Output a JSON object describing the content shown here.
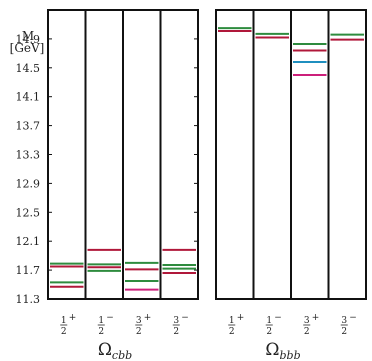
{
  "chart_data": {
    "type": "level-spectrum",
    "ylabel": "M",
    "yunit": "[GeV]",
    "ylim": [
      11.3,
      15.3
    ],
    "yticks": [
      "11.3",
      "11.7",
      "12.1",
      "12.5",
      "12.9",
      "13.3",
      "13.7",
      "14.1",
      "14.5",
      "14.9"
    ],
    "panels": [
      {
        "label_base": "Ω",
        "label_sub": "cbb",
        "columns": [
          {
            "jp_num": "1",
            "jp_den": "2",
            "jp_sign": "+",
            "levels": [
              {
                "value": 11.79,
                "color": "#2e8b3e"
              },
              {
                "value": 11.75,
                "color": "#b0183a"
              },
              {
                "value": 11.53,
                "color": "#2e8b3e"
              },
              {
                "value": 11.47,
                "color": "#b0183a"
              }
            ]
          },
          {
            "jp_num": "1",
            "jp_den": "2",
            "jp_sign": "−",
            "levels": [
              {
                "value": 11.98,
                "color": "#b0183a"
              },
              {
                "value": 11.78,
                "color": "#2e8b3e"
              },
              {
                "value": 11.74,
                "color": "#b0183a"
              },
              {
                "value": 11.69,
                "color": "#2e8b3e"
              }
            ]
          },
          {
            "jp_num": "3",
            "jp_den": "2",
            "jp_sign": "+",
            "levels": [
              {
                "value": 11.8,
                "color": "#2e8b3e"
              },
              {
                "value": 11.71,
                "color": "#b0183a"
              },
              {
                "value": 11.55,
                "color": "#2e8b3e"
              },
              {
                "value": 11.43,
                "color": "#cc1f7a"
              }
            ]
          },
          {
            "jp_num": "3",
            "jp_den": "2",
            "jp_sign": "−",
            "levels": [
              {
                "value": 11.98,
                "color": "#b0183a"
              },
              {
                "value": 11.77,
                "color": "#2e8b3e"
              },
              {
                "value": 11.72,
                "color": "#2e8b3e"
              },
              {
                "value": 11.66,
                "color": "#b0183a"
              }
            ]
          }
        ]
      },
      {
        "label_base": "Ω",
        "label_sub": "bbb",
        "columns": [
          {
            "jp_num": "1",
            "jp_den": "2",
            "jp_sign": "+",
            "levels": [
              {
                "value": 15.05,
                "color": "#2e8b3e"
              },
              {
                "value": 15.01,
                "color": "#b0183a"
              }
            ]
          },
          {
            "jp_num": "1",
            "jp_den": "2",
            "jp_sign": "−",
            "levels": [
              {
                "value": 14.97,
                "color": "#2e8b3e"
              },
              {
                "value": 14.92,
                "color": "#b0183a"
              }
            ]
          },
          {
            "jp_num": "3",
            "jp_den": "2",
            "jp_sign": "+",
            "levels": [
              {
                "value": 14.83,
                "color": "#2e8b3e"
              },
              {
                "value": 14.74,
                "color": "#b0183a"
              },
              {
                "value": 14.58,
                "color": "#1f8fbf"
              },
              {
                "value": 14.4,
                "color": "#cc1f7a"
              }
            ]
          },
          {
            "jp_num": "3",
            "jp_den": "2",
            "jp_sign": "−",
            "levels": [
              {
                "value": 14.96,
                "color": "#2e8b3e"
              },
              {
                "value": 14.89,
                "color": "#b0183a"
              }
            ]
          }
        ]
      }
    ]
  }
}
